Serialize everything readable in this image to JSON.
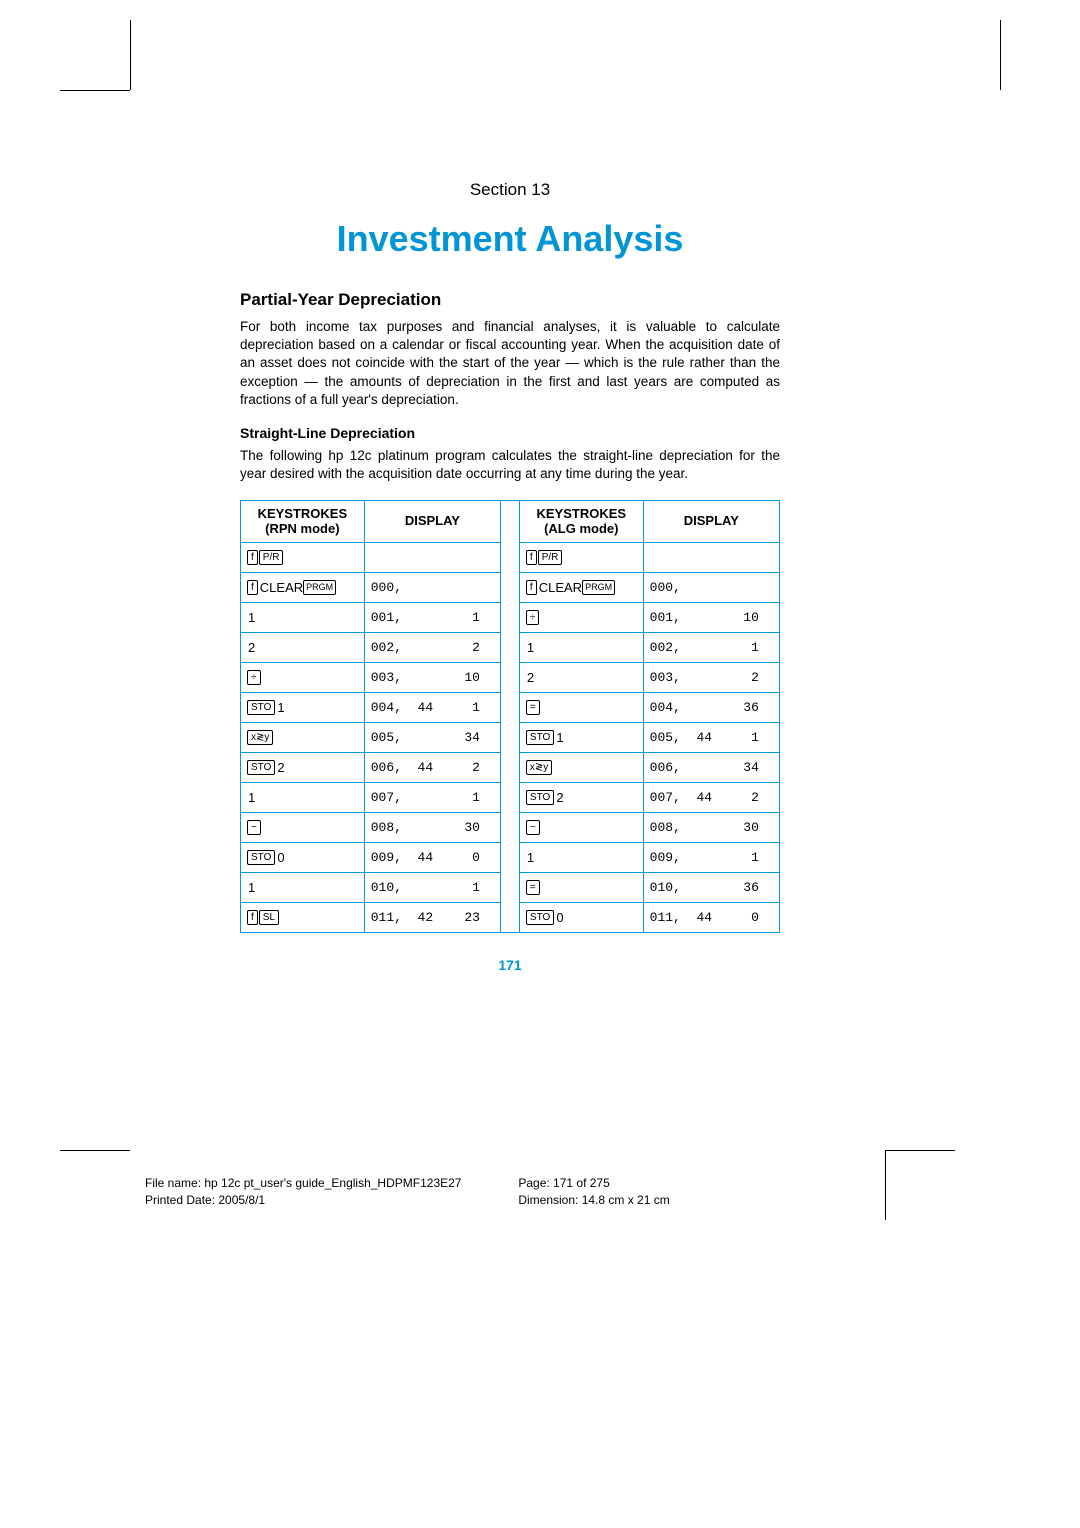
{
  "colors": {
    "accent": "#0096d6",
    "text": "#000000",
    "bg": "#ffffff"
  },
  "section_label": "Section 13",
  "title": "Investment Analysis",
  "h2": "Partial-Year Depreciation",
  "para1": "For both income tax purposes and financial analyses, it is valuable to calculate depreciation based on a calendar or fiscal accounting year. When the acquisition date of an asset does not coincide with the start of the year — which is the rule rather than the exception — the amounts of depreciation in the first and last years are computed as fractions of a full year's depreciation.",
  "h3": "Straight-Line Depreciation",
  "para2": "The following hp 12c platinum program calculates the straight-line depreciation for the year desired with the acquisition date occurring at any time during the year.",
  "table": {
    "headers": {
      "rpn": "KEYSTROKES\n(RPN mode)",
      "disp1": "DISPLAY",
      "alg": "KEYSTROKES\n(ALG mode)",
      "disp2": "DISPLAY"
    },
    "col_widths": [
      "118",
      "130",
      "18",
      "118",
      "130"
    ],
    "rows": [
      {
        "rpn": [
          [
            "f"
          ],
          [
            "P/R"
          ]
        ],
        "rpn_after": "",
        "d1": "",
        "alg": [
          [
            "f"
          ],
          [
            "P/R"
          ]
        ],
        "alg_after": "",
        "d2": ""
      },
      {
        "rpn": [
          [
            "f"
          ]
        ],
        "rpn_text": "CLEAR",
        "rpn_after_keys": [
          [
            "PRGM",
            "sm"
          ]
        ],
        "d1": "000,",
        "alg": [
          [
            "f"
          ]
        ],
        "alg_text": "CLEAR",
        "alg_after_keys": [
          [
            "PRGM",
            "sm"
          ]
        ],
        "d2": "000,"
      },
      {
        "rpn_plain": "1",
        "d1": "001,         1",
        "alg": [
          [
            "÷"
          ]
        ],
        "d2": "001,        10"
      },
      {
        "rpn_plain": "2",
        "d1": "002,         2",
        "alg_plain": "1",
        "d2": "002,         1"
      },
      {
        "rpn": [
          [
            "÷"
          ]
        ],
        "d1": "003,        10",
        "alg_plain": "2",
        "d2": "003,         2"
      },
      {
        "rpn": [
          [
            "STO"
          ]
        ],
        "rpn_after": "1",
        "d1": "004,  44     1",
        "alg": [
          [
            "="
          ]
        ],
        "d2": "004,        36"
      },
      {
        "rpn": [
          [
            "x≷y"
          ]
        ],
        "d1": "005,        34",
        "alg": [
          [
            "STO"
          ]
        ],
        "alg_after": "1",
        "d2": "005,  44     1"
      },
      {
        "rpn": [
          [
            "STO"
          ]
        ],
        "rpn_after": "2",
        "d1": "006,  44     2",
        "alg": [
          [
            "x≷y"
          ]
        ],
        "d2": "006,        34"
      },
      {
        "rpn_plain": "1",
        "d1": "007,         1",
        "alg": [
          [
            "STO"
          ]
        ],
        "alg_after": "2",
        "d2": "007,  44     2"
      },
      {
        "rpn": [
          [
            "−"
          ]
        ],
        "d1": "008,        30",
        "alg": [
          [
            "−"
          ]
        ],
        "d2": "008,        30"
      },
      {
        "rpn": [
          [
            "STO"
          ]
        ],
        "rpn_after": "0",
        "d1": "009,  44     0",
        "alg_plain": "1",
        "d2": "009,         1"
      },
      {
        "rpn_plain": "1",
        "d1": "010,         1",
        "alg": [
          [
            "="
          ]
        ],
        "d2": "010,        36"
      },
      {
        "rpn": [
          [
            "f"
          ],
          [
            "SL"
          ]
        ],
        "d1": "011,  42    23",
        "alg": [
          [
            "STO"
          ]
        ],
        "alg_after": "0",
        "d2": "011,  44     0"
      }
    ]
  },
  "page_number": "171",
  "footer": {
    "filename": "File name: hp 12c pt_user's guide_English_HDPMF123E27",
    "page": "Page: 171 of 275",
    "printed": "Printed Date: 2005/8/1",
    "dimension": "Dimension: 14.8 cm x 21 cm"
  }
}
